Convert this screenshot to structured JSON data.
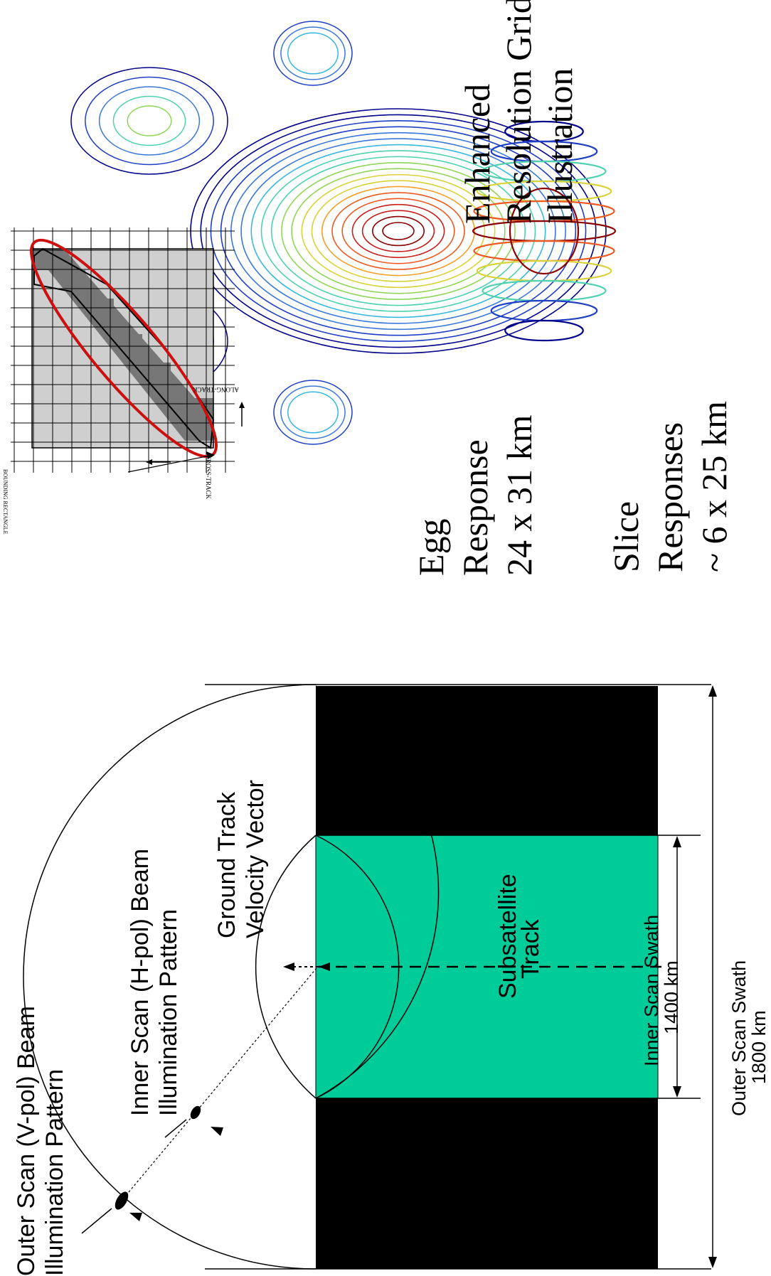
{
  "scan_diagram": {
    "outer_beam_label": [
      "Outer Scan (V-pol) Beam",
      "Illumination Pattern"
    ],
    "inner_beam_label": [
      "Inner Scan (H-pol) Beam",
      "Illumination Pattern"
    ],
    "velocity_label": [
      "Ground Track",
      "Velocity Vector"
    ],
    "subsatellite_label": [
      "Subsatellite",
      "Track"
    ],
    "inner_swath_label": [
      "Inner Scan Swath",
      "1400 km"
    ],
    "outer_swath_label": [
      "Outer Scan Swath",
      "1800 km"
    ],
    "colors": {
      "inner_swath": "#00cc99",
      "outer_swath": "#000000"
    }
  },
  "response_panel": {
    "egg_label": [
      "Egg",
      "Response",
      "24 x 31 km"
    ],
    "slice_label": [
      "Slice",
      "Responses",
      "~ 6 x 25 km"
    ],
    "contour_colors": [
      "#00008b",
      "#1f3fc4",
      "#3c78d8",
      "#39b8e0",
      "#4fd1b0",
      "#8fd65a",
      "#d9d23a",
      "#f5a02a",
      "#ec5a22",
      "#c81e1e",
      "#8b0000"
    ]
  },
  "grid_panel": {
    "bounding_label": "BOUNDING RECTANGLE",
    "cross_track_label": "CROSS-TRACK",
    "along_track_label": "ALONG-TRACK",
    "title": [
      "Enhanced",
      "Resolution Grid",
      "Illustration"
    ],
    "colors": {
      "egg_fill": "#777777",
      "light_fill": "#cfcfcf",
      "ellipse": "#cc1010"
    }
  }
}
